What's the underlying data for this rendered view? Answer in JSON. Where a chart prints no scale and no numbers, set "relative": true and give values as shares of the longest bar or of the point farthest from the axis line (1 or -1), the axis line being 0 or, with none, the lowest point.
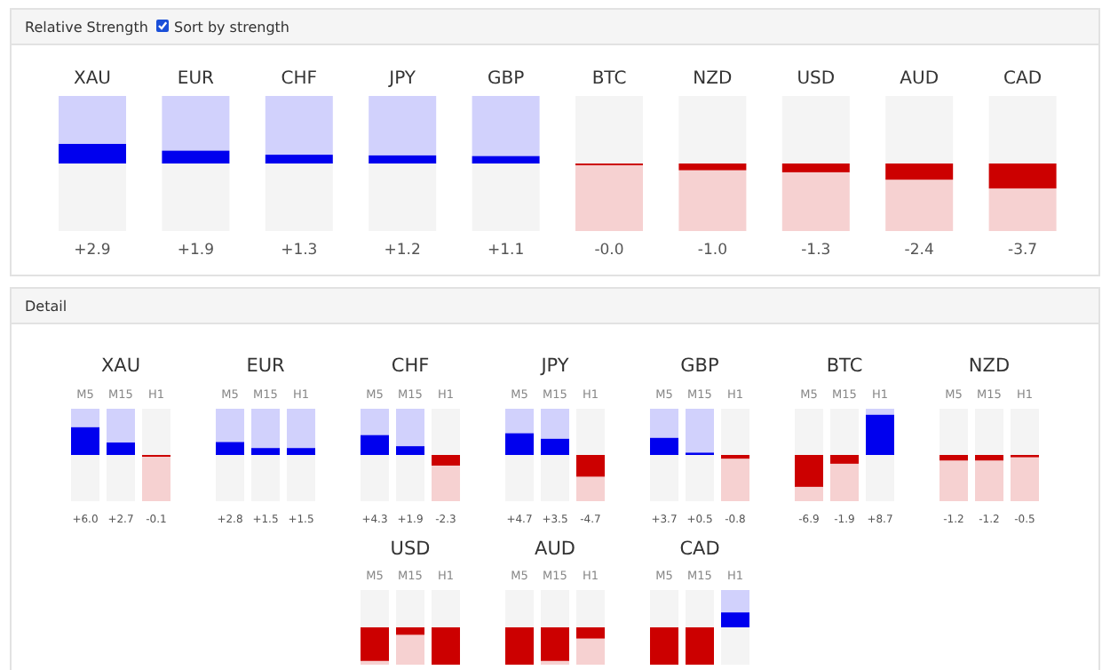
{
  "chart_data": [
    {
      "type": "bar",
      "title": "Relative Strength",
      "annotations": [
        "Sort by strength"
      ],
      "categories": [
        "XAU",
        "EUR",
        "CHF",
        "JPY",
        "GBP",
        "BTC",
        "NZD",
        "USD",
        "AUD",
        "CAD"
      ],
      "values": [
        2.9,
        1.9,
        1.3,
        1.2,
        1.1,
        -0.0,
        -1.0,
        -1.3,
        -2.4,
        -3.7
      ],
      "value_labels": [
        "+2.9",
        "+1.9",
        "+1.3",
        "+1.2",
        "+1.1",
        "-0.0",
        "-1.0",
        "-1.3",
        "-2.4",
        "-3.7"
      ],
      "colors": [
        "#0000ee",
        "#0000ee",
        "#0000ee",
        "#0000ee",
        "#0000ee",
        "#cc0000",
        "#cc0000",
        "#cc0000",
        "#cc0000",
        "#cc0000"
      ],
      "ylim": [
        -10,
        10
      ],
      "tick_labels": "x"
    },
    {
      "type": "other",
      "title": "Detail"
    },
    {
      "type": "bar",
      "title": "XAU",
      "categories": [
        "M5",
        "M15",
        "H1"
      ],
      "values": [
        6.0,
        2.7,
        -0.1
      ],
      "value_labels": [
        "+6.0",
        "+2.7",
        "-0.1"
      ],
      "colors": [
        "#0000ee",
        "#0000ee",
        "#cc0000"
      ],
      "ylim": [
        -10,
        10
      ],
      "tick_labels": "x"
    },
    {
      "type": "bar",
      "title": "EUR",
      "categories": [
        "M5",
        "M15",
        "H1"
      ],
      "values": [
        2.8,
        1.5,
        1.5
      ],
      "value_labels": [
        "+2.8",
        "+1.5",
        "+1.5"
      ],
      "colors": [
        "#0000ee",
        "#0000ee",
        "#0000ee"
      ],
      "ylim": [
        -10,
        10
      ],
      "tick_labels": "x"
    },
    {
      "type": "bar",
      "title": "CHF",
      "categories": [
        "M5",
        "M15",
        "H1"
      ],
      "values": [
        4.3,
        1.9,
        -2.3
      ],
      "value_labels": [
        "+4.3",
        "+1.9",
        "-2.3"
      ],
      "colors": [
        "#0000ee",
        "#0000ee",
        "#cc0000"
      ],
      "ylim": [
        -10,
        10
      ],
      "tick_labels": "x"
    },
    {
      "type": "bar",
      "title": "JPY",
      "categories": [
        "M5",
        "M15",
        "H1"
      ],
      "values": [
        4.7,
        3.5,
        -4.7
      ],
      "value_labels": [
        "+4.7",
        "+3.5",
        "-4.7"
      ],
      "colors": [
        "#0000ee",
        "#0000ee",
        "#cc0000"
      ],
      "ylim": [
        -10,
        10
      ],
      "tick_labels": "x"
    },
    {
      "type": "bar",
      "title": "GBP",
      "categories": [
        "M5",
        "M15",
        "H1"
      ],
      "values": [
        3.7,
        0.5,
        -0.8
      ],
      "value_labels": [
        "+3.7",
        "+0.5",
        "-0.8"
      ],
      "colors": [
        "#0000ee",
        "#0000ee",
        "#cc0000"
      ],
      "ylim": [
        -10,
        10
      ],
      "tick_labels": "x"
    },
    {
      "type": "bar",
      "title": "BTC",
      "categories": [
        "M5",
        "M15",
        "H1"
      ],
      "values": [
        -6.9,
        -1.9,
        8.7
      ],
      "value_labels": [
        "-6.9",
        "-1.9",
        "+8.7"
      ],
      "colors": [
        "#cc0000",
        "#cc0000",
        "#0000ee"
      ],
      "ylim": [
        -10,
        10
      ],
      "tick_labels": "x"
    },
    {
      "type": "bar",
      "title": "NZD",
      "categories": [
        "M5",
        "M15",
        "H1"
      ],
      "values": [
        -1.2,
        -1.2,
        -0.5
      ],
      "value_labels": [
        "-1.2",
        "-1.2",
        "-0.5"
      ],
      "colors": [
        "#cc0000",
        "#cc0000",
        "#cc0000"
      ],
      "ylim": [
        -10,
        10
      ],
      "tick_labels": "x"
    },
    {
      "type": "bar",
      "title": "USD",
      "categories": [
        "M5",
        "M15",
        "H1"
      ],
      "values": [
        -0.9,
        -0.2,
        -1
      ],
      "colors": [
        "#cc0000",
        "#cc0000",
        "#cc0000"
      ],
      "relative": true,
      "tick_labels": "x"
    },
    {
      "type": "bar",
      "title": "AUD",
      "categories": [
        "M5",
        "M15",
        "H1"
      ],
      "values": [
        -1,
        -0.9,
        -0.3
      ],
      "colors": [
        "#cc0000",
        "#cc0000",
        "#cc0000"
      ],
      "relative": true,
      "tick_labels": "x"
    },
    {
      "type": "bar",
      "title": "CAD",
      "categories": [
        "M5",
        "M15",
        "H1"
      ],
      "values": [
        -1,
        -1,
        0.4
      ],
      "colors": [
        "#cc0000",
        "#cc0000",
        "#0000ee"
      ],
      "relative": true,
      "tick_labels": "x"
    }
  ]
}
